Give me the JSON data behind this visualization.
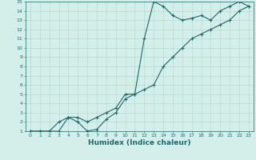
{
  "xlabel": "Humidex (Indice chaleur)",
  "xlim": [
    -0.5,
    23.5
  ],
  "ylim": [
    1,
    15
  ],
  "xticks": [
    0,
    1,
    2,
    3,
    4,
    5,
    6,
    7,
    8,
    9,
    10,
    11,
    12,
    13,
    14,
    15,
    16,
    17,
    18,
    19,
    20,
    21,
    22,
    23
  ],
  "yticks": [
    1,
    2,
    3,
    4,
    5,
    6,
    7,
    8,
    9,
    10,
    11,
    12,
    13,
    14,
    15
  ],
  "background_color": "#d4eeea",
  "grid_color": "#b0d4ce",
  "line_color": "#1a6b6b",
  "line1_x": [
    0,
    1,
    2,
    3,
    4,
    5,
    6,
    7,
    8,
    9,
    10,
    11,
    12,
    13,
    14,
    15,
    16,
    17,
    18,
    19,
    20,
    21,
    22,
    23
  ],
  "line1_y": [
    1,
    1,
    1,
    1,
    2.5,
    2,
    1,
    1.2,
    2.3,
    3,
    4.5,
    5,
    11,
    15,
    14.5,
    13.5,
    13,
    13.2,
    13.5,
    13,
    14,
    14.5,
    15,
    14.5
  ],
  "line2_x": [
    0,
    1,
    2,
    3,
    4,
    5,
    6,
    7,
    8,
    9,
    10,
    11,
    12,
    13,
    14,
    15,
    16,
    17,
    18,
    19,
    20,
    21,
    22,
    23
  ],
  "line2_y": [
    1,
    1,
    1,
    2,
    2.5,
    2.5,
    2,
    2.5,
    3,
    3.5,
    5,
    5,
    5.5,
    6,
    8,
    9,
    10,
    11,
    11.5,
    12,
    12.5,
    13,
    14,
    14.5
  ],
  "marker": "+",
  "markersize": 3,
  "linewidth": 0.8,
  "tick_fontsize": 4.5,
  "xlabel_fontsize": 6.5
}
